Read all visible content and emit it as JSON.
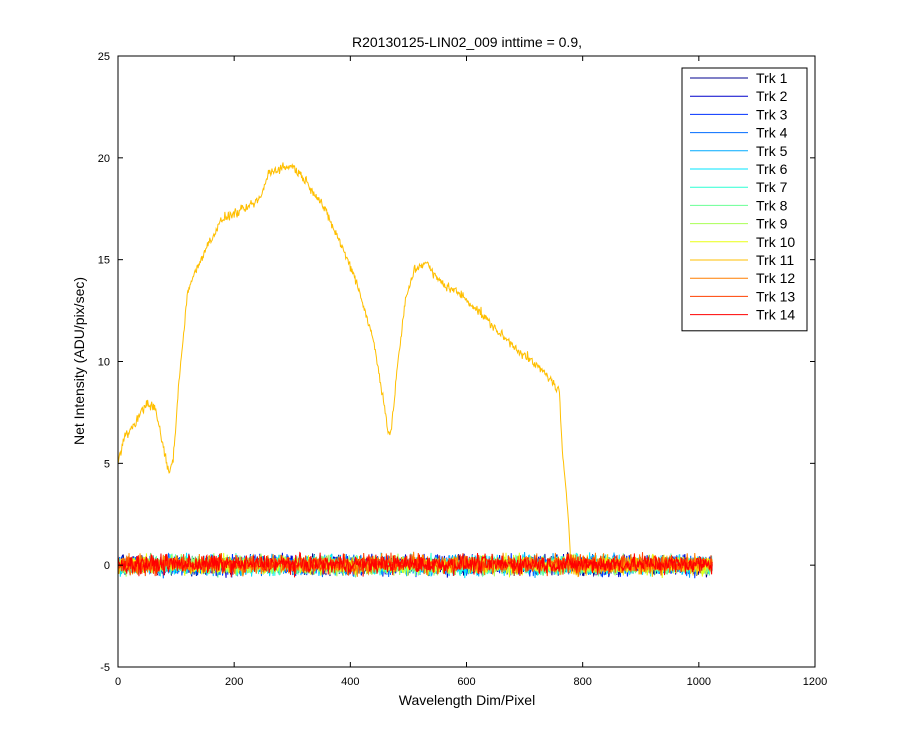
{
  "chart_data": {
    "type": "line",
    "title": "R20130125-LIN02_009 inttime = 0.9,",
    "xlabel": "Wavelength Dim/Pixel",
    "ylabel": "Net Intensity (ADU/pix/sec)",
    "xlim": [
      0,
      1200
    ],
    "ylim": [
      -5,
      25
    ],
    "xticks": [
      0,
      200,
      400,
      600,
      800,
      1000,
      1200
    ],
    "yticks": [
      -5,
      0,
      5,
      10,
      15,
      20,
      25
    ],
    "legend_position": "top-right",
    "grid": false,
    "n_points": 1024,
    "noise_amplitude": 0.35,
    "series": [
      {
        "name": "Trk 1",
        "color": "#00008f",
        "baseline": 0.0
      },
      {
        "name": "Trk 2",
        "color": "#0000cc",
        "baseline": 0.0
      },
      {
        "name": "Trk 3",
        "color": "#0030ff",
        "baseline": 0.0
      },
      {
        "name": "Trk 4",
        "color": "#006bff",
        "baseline": 0.0
      },
      {
        "name": "Trk 5",
        "color": "#00aaff",
        "baseline": 0.0
      },
      {
        "name": "Trk 6",
        "color": "#00e5ff",
        "baseline": 0.0
      },
      {
        "name": "Trk 7",
        "color": "#2bffd4",
        "baseline": 0.0
      },
      {
        "name": "Trk 8",
        "color": "#6aff95",
        "baseline": 0.0
      },
      {
        "name": "Trk 9",
        "color": "#aaff55",
        "baseline": 0.0
      },
      {
        "name": "Trk 10",
        "color": "#eaff15",
        "baseline": 0.0
      },
      {
        "name": "Trk 11",
        "color": "#ffbf00",
        "profile": [
          [
            0,
            5.0
          ],
          [
            10,
            6.2
          ],
          [
            30,
            7.0
          ],
          [
            50,
            8.0
          ],
          [
            65,
            7.6
          ],
          [
            80,
            5.5
          ],
          [
            88,
            4.5
          ],
          [
            95,
            5.2
          ],
          [
            105,
            9.0
          ],
          [
            120,
            13.5
          ],
          [
            150,
            15.5
          ],
          [
            180,
            17.0
          ],
          [
            220,
            17.5
          ],
          [
            245,
            18.0
          ],
          [
            260,
            19.3
          ],
          [
            280,
            19.5
          ],
          [
            300,
            19.6
          ],
          [
            320,
            19.0
          ],
          [
            350,
            17.8
          ],
          [
            380,
            16.0
          ],
          [
            410,
            14.0
          ],
          [
            440,
            11.0
          ],
          [
            455,
            8.5
          ],
          [
            465,
            6.6
          ],
          [
            470,
            6.4
          ],
          [
            480,
            9.5
          ],
          [
            495,
            13.0
          ],
          [
            510,
            14.5
          ],
          [
            530,
            14.9
          ],
          [
            545,
            14.2
          ],
          [
            560,
            13.8
          ],
          [
            590,
            13.3
          ],
          [
            620,
            12.5
          ],
          [
            660,
            11.3
          ],
          [
            700,
            10.3
          ],
          [
            740,
            9.3
          ],
          [
            760,
            8.5
          ],
          [
            765,
            5.5
          ],
          [
            775,
            2.5
          ],
          [
            780,
            0.0
          ],
          [
            1023,
            0.0
          ]
        ]
      },
      {
        "name": "Trk 12",
        "color": "#ff7f00",
        "baseline": 0.05
      },
      {
        "name": "Trk 13",
        "color": "#ff4000",
        "baseline": 0.05
      },
      {
        "name": "Trk 14",
        "color": "#ff0000",
        "baseline": 0.05
      }
    ]
  }
}
